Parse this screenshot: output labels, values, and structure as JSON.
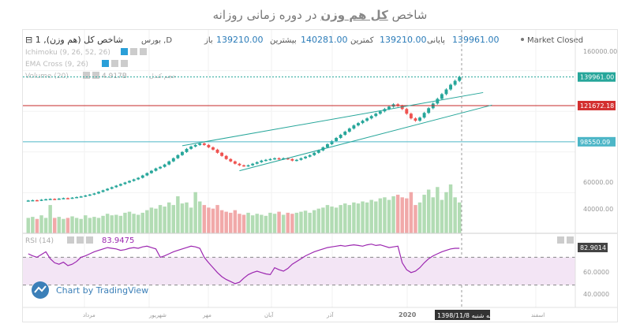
{
  "page_title": {
    "prefix": "شاخص",
    "emphasis": "کل هم وزن",
    "suffix": "در دوره زمانی روزانه"
  },
  "header": {
    "symbol": "شاخص کل (هم وزن), 1",
    "exchange": "بورس ,D",
    "open_label": "باز",
    "open_value": "139210.00",
    "high_label": "بیشترین",
    "high_value": "140281.00",
    "low_label": "کمترین",
    "low_value": "139210.00",
    "close_label": "پایانی",
    "close_value": "139961.00",
    "market_status": "Market Closed"
  },
  "indicators": {
    "ichimoku": "Ichimoku (9, 26, 52, 26)",
    "ema_cross": "EMA Cross (9, 26)",
    "volume": "Volume (20)",
    "volume_label": "حجم کندل",
    "volume_value": "4.917B"
  },
  "rsi": {
    "label": "RSI (14)",
    "value": "83.9475",
    "last_tag": "82.9014",
    "axis_labels": [
      "60.0000",
      "40.0000"
    ]
  },
  "watermark": "Chart by TradingView",
  "price_axis": {
    "labels": [
      "160000.00",
      "60000.00",
      "40000.00"
    ],
    "last_price_tag": "139961.00",
    "red_line_tag": "121672.18",
    "support_tag": "98550.09"
  },
  "time_axis": {
    "labels": [
      "مرداد",
      "شهریور",
      "مهر",
      "آبان",
      "آذر",
      "2020",
      "اسفند"
    ],
    "cursor_label": "سه شنبه  1398/11/8"
  },
  "colors": {
    "up": "#26a69a",
    "down": "#ef5350",
    "trend_line": "#26a69a",
    "resistance": "#c62828",
    "rsi_line": "#9c27b0",
    "rsi_band": "#f3e5f5",
    "watermark_bg": "#3b7fb8"
  },
  "chart_data": {
    "type": "candlestick",
    "price_series": [
      61000,
      61200,
      61000,
      61500,
      61800,
      62000,
      61800,
      62200,
      62500,
      62400,
      62800,
      63200,
      63600,
      64200,
      64800,
      65500,
      66500,
      67500,
      68500,
      69500,
      70500,
      71500,
      72500,
      73500,
      74500,
      75500,
      77000,
      78500,
      80000,
      81500,
      82500,
      84000,
      86000,
      88000,
      90000,
      92000,
      94000,
      95500,
      96500,
      97500,
      96500,
      95000,
      93500,
      91500,
      89500,
      87500,
      86000,
      84500,
      83500,
      83000,
      83500,
      84500,
      85500,
      86500,
      87000,
      87500,
      88000,
      87500,
      88000,
      87500,
      86500,
      87000,
      88000,
      89000,
      90000,
      91500,
      93000,
      95000,
      97000,
      99000,
      101000,
      103000,
      105000,
      107000,
      109000,
      110500,
      112000,
      113500,
      115000,
      116500,
      118000,
      119500,
      121000,
      122500,
      121500,
      119500,
      116500,
      113500,
      112000,
      114000,
      117000,
      120000,
      123000,
      126000,
      129000,
      132000,
      135000,
      137500,
      139961
    ],
    "volume_series": [
      0.3,
      0.32,
      0.28,
      0.35,
      0.3,
      0.55,
      0.3,
      0.32,
      0.28,
      0.3,
      0.33,
      0.3,
      0.28,
      0.35,
      0.3,
      0.32,
      0.3,
      0.34,
      0.38,
      0.35,
      0.36,
      0.34,
      0.4,
      0.42,
      0.38,
      0.36,
      0.4,
      0.45,
      0.5,
      0.48,
      0.55,
      0.52,
      0.6,
      0.55,
      0.72,
      0.58,
      0.6,
      0.5,
      0.8,
      0.62,
      0.55,
      0.5,
      0.48,
      0.55,
      0.45,
      0.42,
      0.4,
      0.45,
      0.38,
      0.36,
      0.4,
      0.35,
      0.38,
      0.36,
      0.34,
      0.4,
      0.38,
      0.42,
      0.36,
      0.4,
      0.38,
      0.4,
      0.42,
      0.44,
      0.4,
      0.45,
      0.48,
      0.5,
      0.55,
      0.52,
      0.5,
      0.55,
      0.58,
      0.55,
      0.6,
      0.58,
      0.62,
      0.6,
      0.65,
      0.62,
      0.68,
      0.7,
      0.65,
      0.72,
      0.75,
      0.7,
      0.68,
      0.8,
      0.55,
      0.6,
      0.75,
      0.85,
      0.7,
      0.9,
      0.65,
      0.8,
      0.95,
      0.7,
      0.6
    ],
    "rsi_series": [
      75,
      72,
      70,
      74,
      78,
      68,
      62,
      60,
      63,
      58,
      60,
      64,
      70,
      72,
      75,
      78,
      80,
      82,
      84,
      83,
      82,
      80,
      81,
      83,
      84,
      83,
      85,
      86,
      84,
      82,
      70,
      72,
      75,
      78,
      80,
      82,
      84,
      86,
      85,
      83,
      70,
      62,
      55,
      48,
      42,
      38,
      35,
      32,
      34,
      40,
      45,
      48,
      50,
      48,
      46,
      45,
      55,
      52,
      50,
      54,
      60,
      64,
      68,
      72,
      75,
      78,
      80,
      82,
      84,
      85,
      86,
      87,
      86,
      87,
      88,
      87,
      86,
      88,
      89,
      87,
      88,
      86,
      84,
      85,
      86,
      62,
      52,
      48,
      50,
      55,
      62,
      68,
      72,
      75,
      78,
      80,
      82,
      83,
      82.9
    ],
    "resistance_level": 121672.18,
    "support_level": 98550.09,
    "trend_lines": [
      {
        "from": [
          35,
          96000
        ],
        "to": [
          98,
          130000
        ]
      },
      {
        "from": [
          48,
          80000
        ],
        "to": [
          100,
          122000
        ]
      }
    ],
    "ylim": [
      40000,
      165000
    ],
    "rsi_levels": [
      30,
      70
    ]
  }
}
